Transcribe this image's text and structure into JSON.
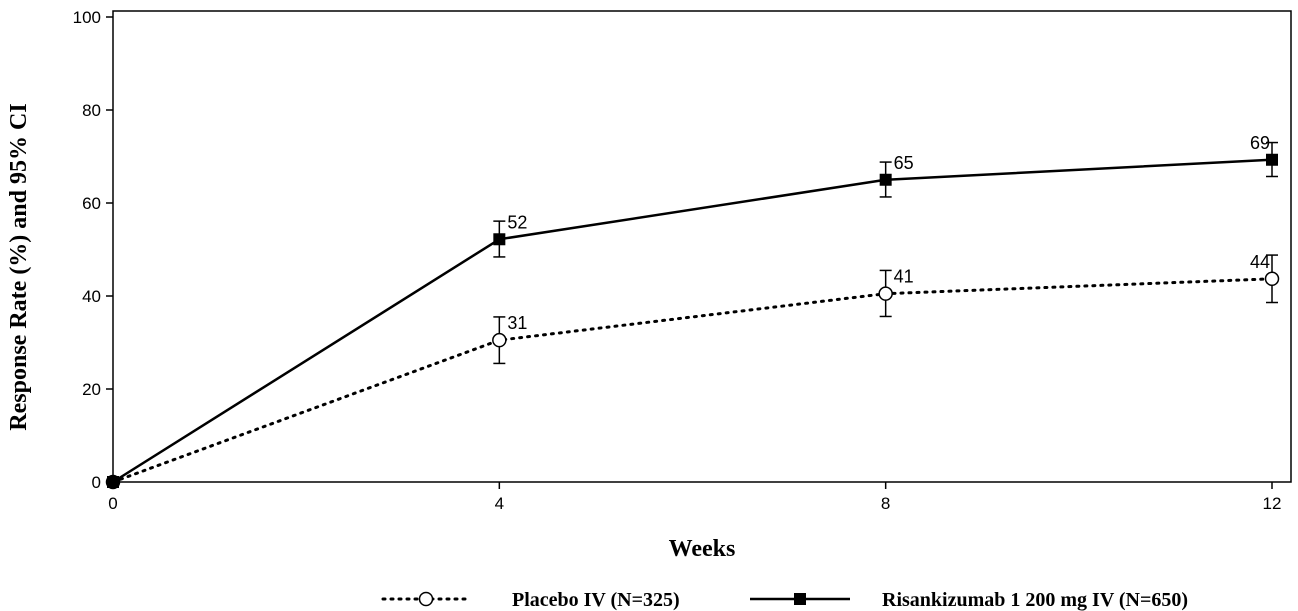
{
  "chart_data": {
    "type": "line",
    "title": "",
    "xlabel": "Weeks",
    "ylabel": "Response Rate (%) and 95% CI",
    "x": [
      0,
      4,
      8,
      12
    ],
    "xticks": [
      0,
      4,
      8,
      12
    ],
    "yticks": [
      0,
      20,
      40,
      60,
      80,
      100
    ],
    "xlim": [
      0,
      12
    ],
    "ylim": [
      0,
      100
    ],
    "grid": false,
    "legend_position": "bottom",
    "series": [
      {
        "name": "Placebo IV (N=325)",
        "values": [
          0,
          30.5,
          40.5,
          43.7
        ],
        "ci_lower": [
          null,
          25.5,
          35.6,
          38.6
        ],
        "ci_upper": [
          null,
          35.5,
          45.5,
          48.8
        ],
        "labels": [
          "",
          "31",
          "41",
          "44"
        ],
        "color": "#000000",
        "line_style": "dotted",
        "marker": "open-circle"
      },
      {
        "name": "Risankizumab 1 200 mg IV (N=650)",
        "values": [
          0,
          52.2,
          65.0,
          69.3
        ],
        "ci_lower": [
          null,
          48.4,
          61.3,
          65.7
        ],
        "ci_upper": [
          null,
          56.1,
          68.8,
          73.0
        ],
        "labels": [
          "",
          "52",
          "65",
          "69"
        ],
        "color": "#000000",
        "line_style": "solid",
        "marker": "filled-square"
      }
    ]
  }
}
